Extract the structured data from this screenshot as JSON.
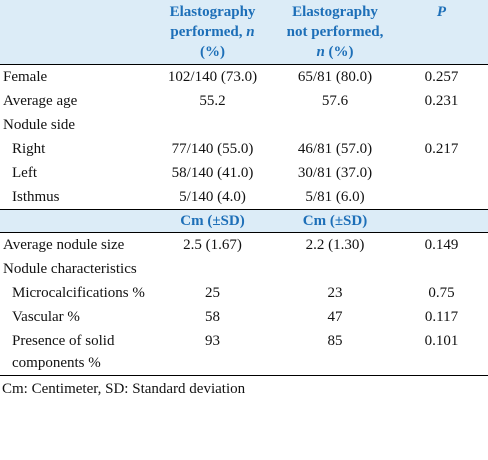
{
  "table": {
    "columns": [
      [
        "Elastography performed, ",
        "n",
        " (%)"
      ],
      [
        "Elastography not performed, ",
        "n",
        " (%)"
      ],
      "P"
    ],
    "rows": [
      {
        "label": "Female",
        "values": [
          "102/140 (73.0)",
          "65/81 (80.0)",
          0.257
        ]
      },
      {
        "label": "Average age",
        "values": [
          55.2,
          57.6,
          0.231
        ]
      },
      {
        "label": "Nodule side"
      },
      {
        "label": "Right",
        "values": [
          "77/140 (55.0)",
          "46/81 (57.0)",
          0.217
        ]
      },
      {
        "label": "Left",
        "values": [
          "58/140 (41.0)",
          "30/81 (37.0)"
        ]
      },
      {
        "label": "Isthmus",
        "values": [
          "5/140 (4.0)",
          "5/81 (6.0)"
        ]
      }
    ],
    "units": [
      "Cm (±SD)",
      "Cm (±SD)"
    ],
    "rows2": [
      {
        "label": "Average nodule size",
        "values": [
          "2.5 (1.67)",
          "2.2 (1.30)",
          0.149
        ]
      },
      {
        "label": "Nodule characteristics"
      },
      {
        "label": "Microcalcifications %",
        "values": [
          25,
          23,
          0.75
        ]
      },
      {
        "label": "Vascular %",
        "values": [
          58,
          47,
          0.117
        ]
      },
      {
        "label": "Presence of solid components %",
        "values": [
          93,
          85,
          0.101
        ]
      }
    ],
    "footnote": "Cm: Centimeter, SD: Standard deviation"
  }
}
